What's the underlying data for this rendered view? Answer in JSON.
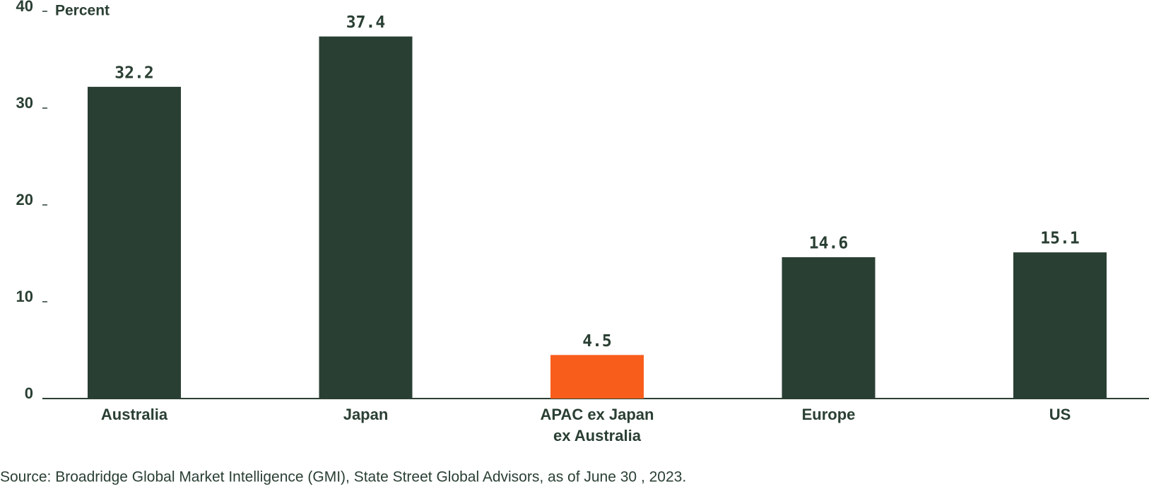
{
  "chart_data": {
    "type": "bar",
    "y_label": "Percent",
    "categories": [
      "Australia",
      "Japan",
      "APAC ex Japan\nex Australia",
      "Europe",
      "US"
    ],
    "values": [
      32.2,
      37.4,
      4.5,
      14.6,
      15.1
    ],
    "colors": [
      "#2a3f33",
      "#2a3f33",
      "#f95d1c",
      "#2a3f33",
      "#2a3f33"
    ],
    "ylim": [
      0,
      40
    ],
    "yticks": [
      0,
      10,
      20,
      30,
      40
    ],
    "grid": false,
    "source": "Source: Broadridge Global Market Intelligence (GMI), State Street Global Advisors, as of June 30 , 2023."
  }
}
